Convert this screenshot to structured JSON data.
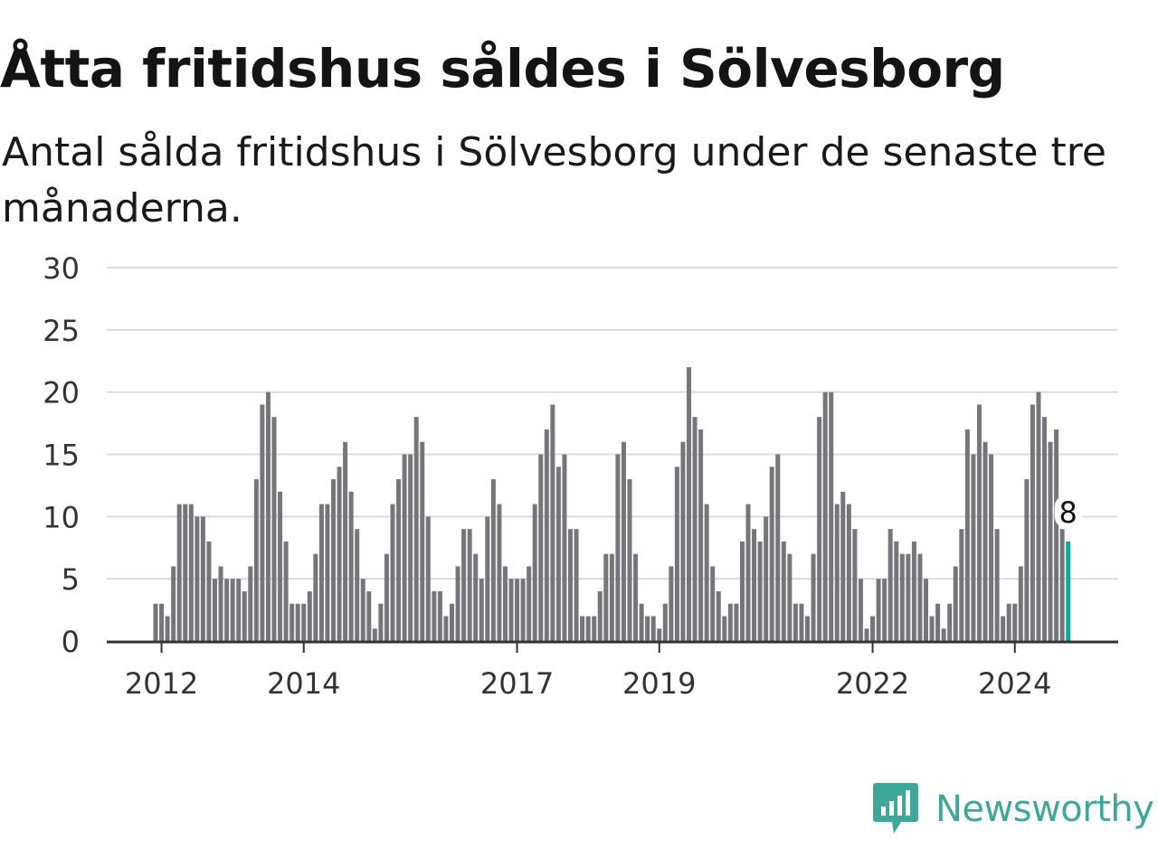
{
  "title": "Åtta fritidshus såldes i Sölvesborg",
  "subtitle": "Antal sålda fritidshus i Sölvesborg under de senaste tre månaderna.",
  "brand": {
    "name": "Newsworthy",
    "icon": "newsworthy-logo-icon",
    "color": "#3fa69a"
  },
  "colors": {
    "bar": "#76767a",
    "highlight": "#1aa39a",
    "grid": "#dcdcdc",
    "axis": "#333333",
    "text": "#333333"
  },
  "chart_data": {
    "type": "bar",
    "title": "Åtta fritidshus såldes i Sölvesborg",
    "subtitle": "Antal sålda fritidshus i Sölvesborg under de senaste tre månaderna.",
    "xlabel": "",
    "ylabel": "",
    "ylim": [
      0,
      30
    ],
    "yticks": [
      0,
      5,
      10,
      15,
      20,
      25,
      30
    ],
    "x_start": "2011-12",
    "x_end": "2024-10",
    "xtick_labels": [
      {
        "label": "2012",
        "date": "2012-01"
      },
      {
        "label": "2014",
        "date": "2014-01"
      },
      {
        "label": "2017",
        "date": "2017-01"
      },
      {
        "label": "2019",
        "date": "2019-01"
      },
      {
        "label": "2022",
        "date": "2022-01"
      },
      {
        "label": "2024",
        "date": "2024-01"
      }
    ],
    "grid": true,
    "highlight_last": true,
    "last_label": "8",
    "values": [
      3,
      3,
      2,
      6,
      11,
      11,
      11,
      10,
      10,
      8,
      5,
      6,
      5,
      5,
      5,
      4,
      6,
      13,
      19,
      20,
      18,
      12,
      8,
      3,
      3,
      3,
      4,
      7,
      11,
      11,
      13,
      14,
      16,
      12,
      9,
      5,
      4,
      1,
      3,
      7,
      11,
      13,
      15,
      15,
      18,
      16,
      10,
      4,
      4,
      2,
      3,
      6,
      9,
      9,
      7,
      5,
      10,
      13,
      11,
      6,
      5,
      5,
      5,
      6,
      11,
      15,
      17,
      19,
      14,
      15,
      9,
      9,
      2,
      2,
      2,
      4,
      7,
      7,
      15,
      16,
      13,
      7,
      3,
      2,
      2,
      1,
      3,
      6,
      14,
      16,
      22,
      18,
      17,
      11,
      6,
      4,
      2,
      3,
      3,
      8,
      11,
      9,
      8,
      10,
      14,
      15,
      8,
      7,
      3,
      3,
      2,
      7,
      18,
      20,
      20,
      11,
      12,
      11,
      9,
      5,
      1,
      2,
      5,
      5,
      9,
      8,
      7,
      7,
      8,
      7,
      5,
      2,
      3,
      1,
      3,
      6,
      9,
      17,
      15,
      19,
      16,
      15,
      9,
      2,
      3,
      3,
      6,
      13,
      19,
      20,
      18,
      16,
      17,
      9,
      8
    ]
  }
}
